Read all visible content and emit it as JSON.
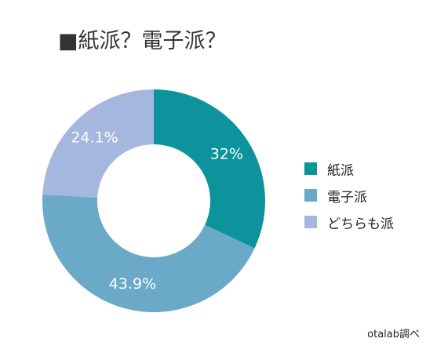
{
  "chart_data": {
    "type": "pie",
    "title": "■紙派？電子派？",
    "categories": [
      "紙派",
      "電子派",
      "どちらも派"
    ],
    "values": [
      32,
      43.9,
      24.1
    ],
    "data_labels": [
      "32%",
      "43.9%",
      "24.1%"
    ],
    "colors": [
      "#0d939b",
      "#6aa9c8",
      "#a6b7df"
    ],
    "legend_position": "right",
    "donut": true
  },
  "source": "otalab調べ"
}
